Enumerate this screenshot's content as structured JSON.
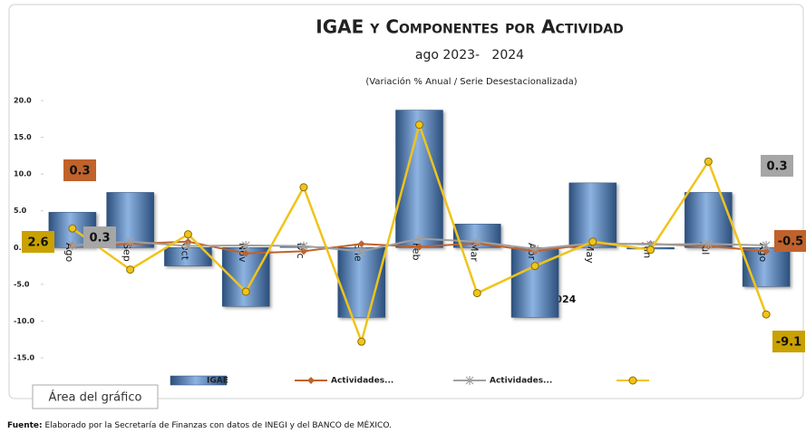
{
  "chart_data": {
    "type": "bar_line",
    "title": "IGAE y Componentes por Actividad",
    "subtitle": "ago 2023-   2024",
    "note": "(Variación % Anual / Serie Desestacionalizada)",
    "annotation": "2024",
    "tooltip": "Área del gráfico",
    "source_label": "Fuente:",
    "source_text": "Elaborado por la Secretaría de Finanzas con datos de INEGI y del BANCO de MÉXICO.",
    "categories": [
      "Ago",
      "Sep",
      "Oct",
      "Nov",
      "Dic",
      "Ene",
      "Feb",
      "Mar",
      "Abr",
      "May",
      "Jun",
      "Jul",
      "Ago"
    ],
    "ylim": [
      -15,
      20
    ],
    "yticks": [
      {
        "value": 20,
        "label": "20.0"
      },
      {
        "value": 15,
        "label": "15.0"
      },
      {
        "value": 10,
        "label": "10.0"
      },
      {
        "value": 5,
        "label": "5.0"
      },
      {
        "value": 0,
        "label": "0.0"
      },
      {
        "value": -5,
        "label": "-5.0"
      },
      {
        "value": -10,
        "label": "-10.0"
      },
      {
        "value": -15,
        "label": "-15.0"
      }
    ],
    "series": [
      {
        "name": "IGAE",
        "type": "bar",
        "color": "#4f81bd",
        "values": [
          4.8,
          7.5,
          -2.5,
          -8.0,
          0.1,
          -9.5,
          18.7,
          3.2,
          -9.5,
          8.8,
          -0.2,
          7.5,
          -5.3
        ]
      },
      {
        "name": "Actividades...",
        "type": "line",
        "marker": "diamond",
        "color": "#c0622b",
        "data_labels": "ends",
        "values": [
          0.3,
          0.5,
          0.8,
          -0.8,
          -0.5,
          0.5,
          0.1,
          0.6,
          -0.5,
          0.5,
          0.5,
          0.2,
          -0.5
        ]
      },
      {
        "name": "Actividades...",
        "type": "line",
        "marker": "star",
        "color": "#a0a0a0",
        "data_labels": "ends",
        "values": [
          0.3,
          0.8,
          0.2,
          0.3,
          0.2,
          -0.5,
          1.2,
          0.8,
          -0.2,
          0.6,
          0.4,
          0.5,
          0.3
        ]
      },
      {
        "type": "line",
        "marker": "circle",
        "color": "#f0c419",
        "data_labels": "ends",
        "values": [
          2.6,
          -3.0,
          1.8,
          -6.0,
          8.2,
          -12.8,
          16.7,
          -6.2,
          -2.5,
          0.8,
          -0.3,
          11.7,
          -9.1
        ]
      }
    ]
  }
}
